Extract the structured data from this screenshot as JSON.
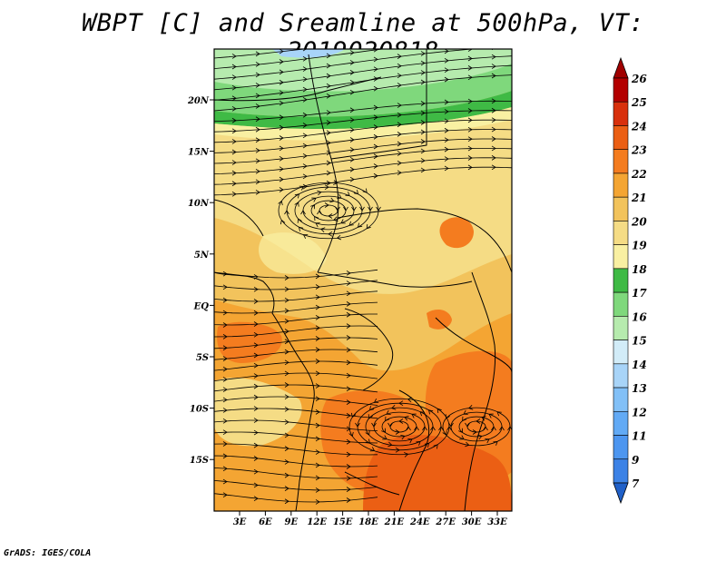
{
  "title": "WBPT [C] and Sreamline at 500hPa, VT: 2019020818",
  "footer": "GrADS: IGES/COLA",
  "map": {
    "lat_labels": [
      "20N",
      "15N",
      "10N",
      "5N",
      "EQ",
      "5S",
      "10S",
      "15S"
    ],
    "lon_labels": [
      "3E",
      "6E",
      "9E",
      "12E",
      "15E",
      "18E",
      "21E",
      "24E",
      "27E",
      "30E",
      "33E"
    ]
  },
  "colorbar": {
    "levels": [
      "7",
      "9",
      "11",
      "12",
      "13",
      "14",
      "15",
      "16",
      "17",
      "18",
      "19",
      "20",
      "21",
      "22",
      "23",
      "24",
      "25",
      "26"
    ],
    "colors": [
      "#2c6fd6",
      "#3c82e6",
      "#4d96f0",
      "#62aaf5",
      "#82c0f7",
      "#a8d4f8",
      "#d2ecf8",
      "#b6ebae",
      "#7fd87c",
      "#3fba45",
      "#f9f0a2",
      "#f5dc85",
      "#f2c35c",
      "#f4a533",
      "#f47c1f",
      "#eb5f14",
      "#d8300c",
      "#b30000"
    ],
    "under_color": "#2060c8",
    "over_color": "#a00000"
  }
}
